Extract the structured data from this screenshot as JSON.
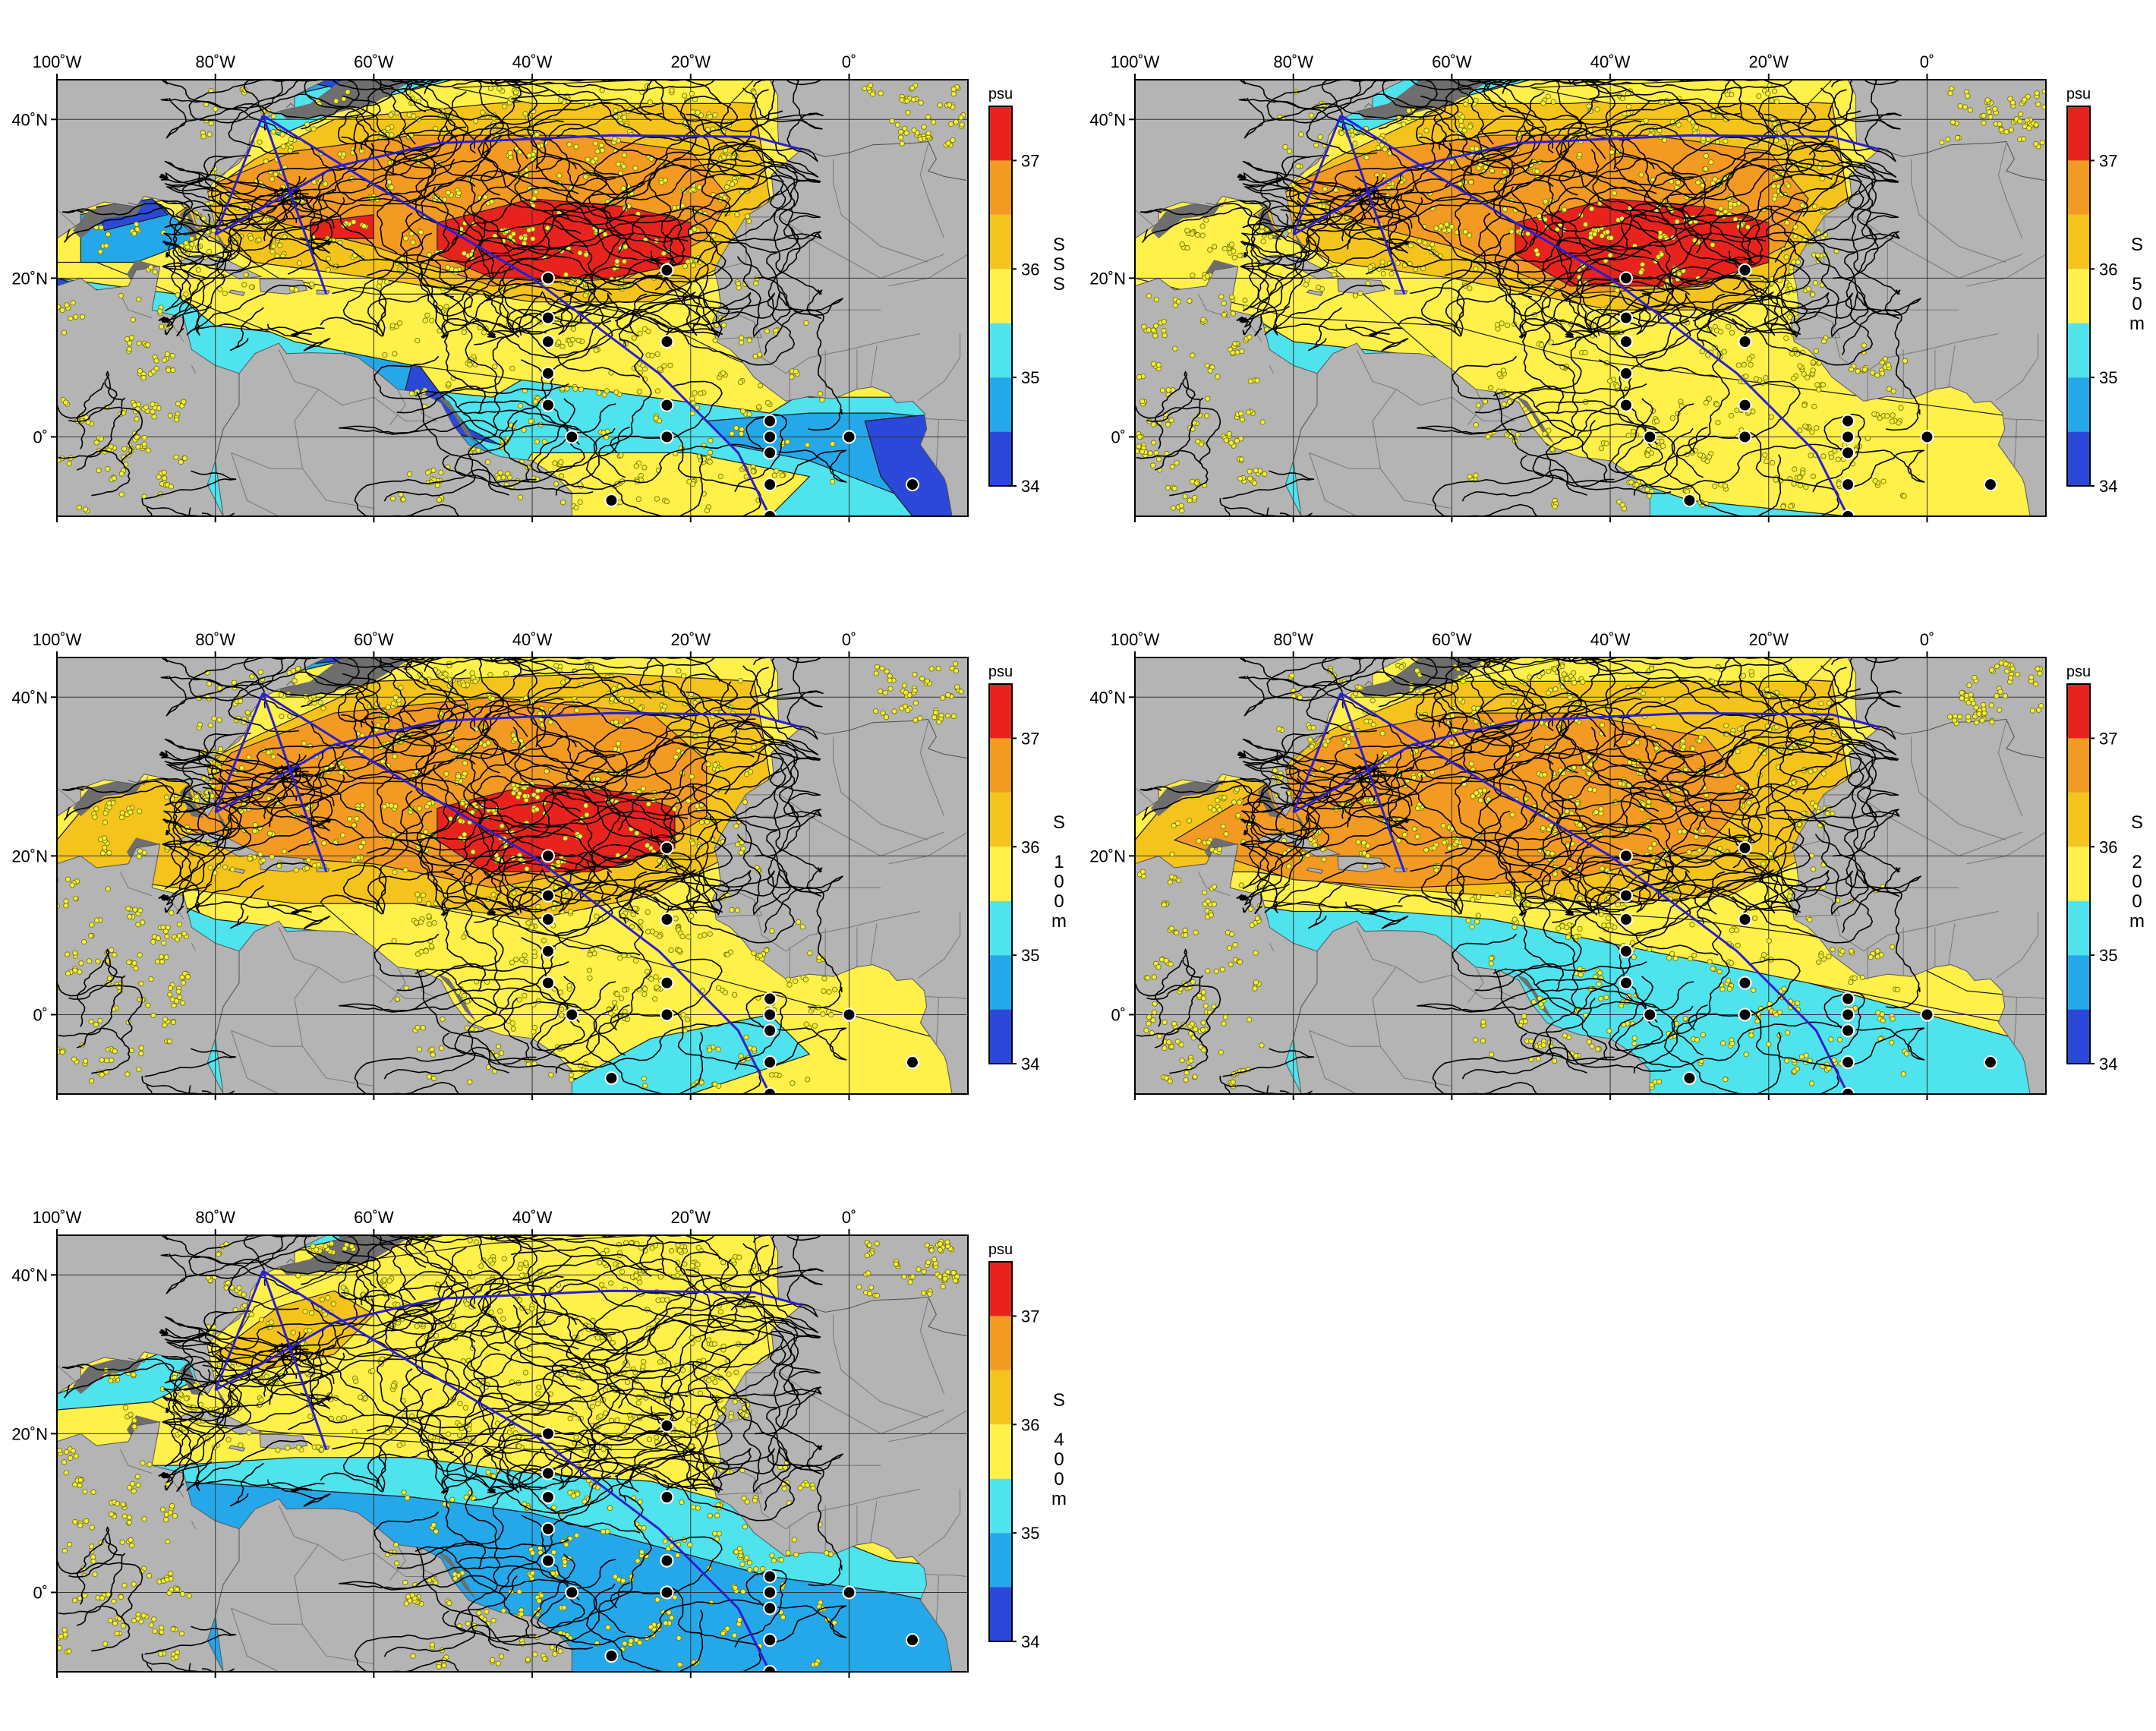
{
  "figure": {
    "lon_range": [
      -100,
      15
    ],
    "lat_range": [
      -10,
      45
    ],
    "lon_ticks": [
      {
        "value": -100,
        "label": "100˚W"
      },
      {
        "value": -80,
        "label": "80˚W"
      },
      {
        "value": -60,
        "label": "60˚W"
      },
      {
        "value": -40,
        "label": "40˚W"
      },
      {
        "value": -20,
        "label": "20˚W"
      },
      {
        "value": 0,
        "label": "0˚"
      }
    ],
    "lat_ticks": [
      {
        "value": 40,
        "label": "40˚N"
      },
      {
        "value": 20,
        "label": "20˚N"
      },
      {
        "value": 0,
        "label": "0˚"
      }
    ],
    "colorbar": {
      "unit": "psu",
      "range": [
        34,
        37.5
      ],
      "ticks": [
        "37",
        "36",
        "35",
        "34"
      ],
      "tick_values": [
        37,
        36,
        35,
        34
      ],
      "colors": [
        {
          "from": 34.0,
          "to": 34.5,
          "color": "#2b48d8"
        },
        {
          "from": 34.5,
          "to": 35.0,
          "color": "#25a8ea"
        },
        {
          "from": 35.0,
          "to": 35.5,
          "color": "#4fe3ee"
        },
        {
          "from": 35.5,
          "to": 36.0,
          "color": "#fff04a"
        },
        {
          "from": 36.0,
          "to": 36.5,
          "color": "#f5c41c"
        },
        {
          "from": 36.5,
          "to": 37.0,
          "color": "#f39a22"
        },
        {
          "from": 37.0,
          "to": 37.5,
          "color": "#e8231e"
        }
      ]
    },
    "land_color": "#b4b4b4",
    "track_color": "#000000",
    "float_color": "#f2ee3c",
    "section_color": "#2a1fd0"
  },
  "panels": [
    {
      "id": "sss",
      "label_chars": [
        "S",
        "S",
        "S"
      ]
    },
    {
      "id": "s50",
      "label_chars": [
        "S",
        "",
        "5",
        "0",
        "m"
      ]
    },
    {
      "id": "s100",
      "label_chars": [
        "S",
        "",
        "1",
        "0",
        "0",
        "m"
      ]
    },
    {
      "id": "s200",
      "label_chars": [
        "S",
        "",
        "2",
        "0",
        "0",
        "m"
      ]
    },
    {
      "id": "s400",
      "label_chars": [
        "S",
        "",
        "4",
        "0",
        "0",
        "m"
      ]
    }
  ],
  "moorings": [
    {
      "lon": -38,
      "lat": 20
    },
    {
      "lon": -38,
      "lat": 15
    },
    {
      "lon": -38,
      "lat": 12
    },
    {
      "lon": -38,
      "lat": 8
    },
    {
      "lon": -38,
      "lat": 4
    },
    {
      "lon": -35,
      "lat": 0
    },
    {
      "lon": -23,
      "lat": 21
    },
    {
      "lon": -23,
      "lat": 12
    },
    {
      "lon": -23,
      "lat": 4
    },
    {
      "lon": -23,
      "lat": 0
    },
    {
      "lon": -30,
      "lat": -8
    },
    {
      "lon": -10,
      "lat": 2
    },
    {
      "lon": -10,
      "lat": 0
    },
    {
      "lon": -10,
      "lat": -2
    },
    {
      "lon": -10,
      "lat": -6
    },
    {
      "lon": -10,
      "lat": -10
    },
    {
      "lon": 0,
      "lat": 0
    },
    {
      "lon": 8,
      "lat": -6
    }
  ]
}
